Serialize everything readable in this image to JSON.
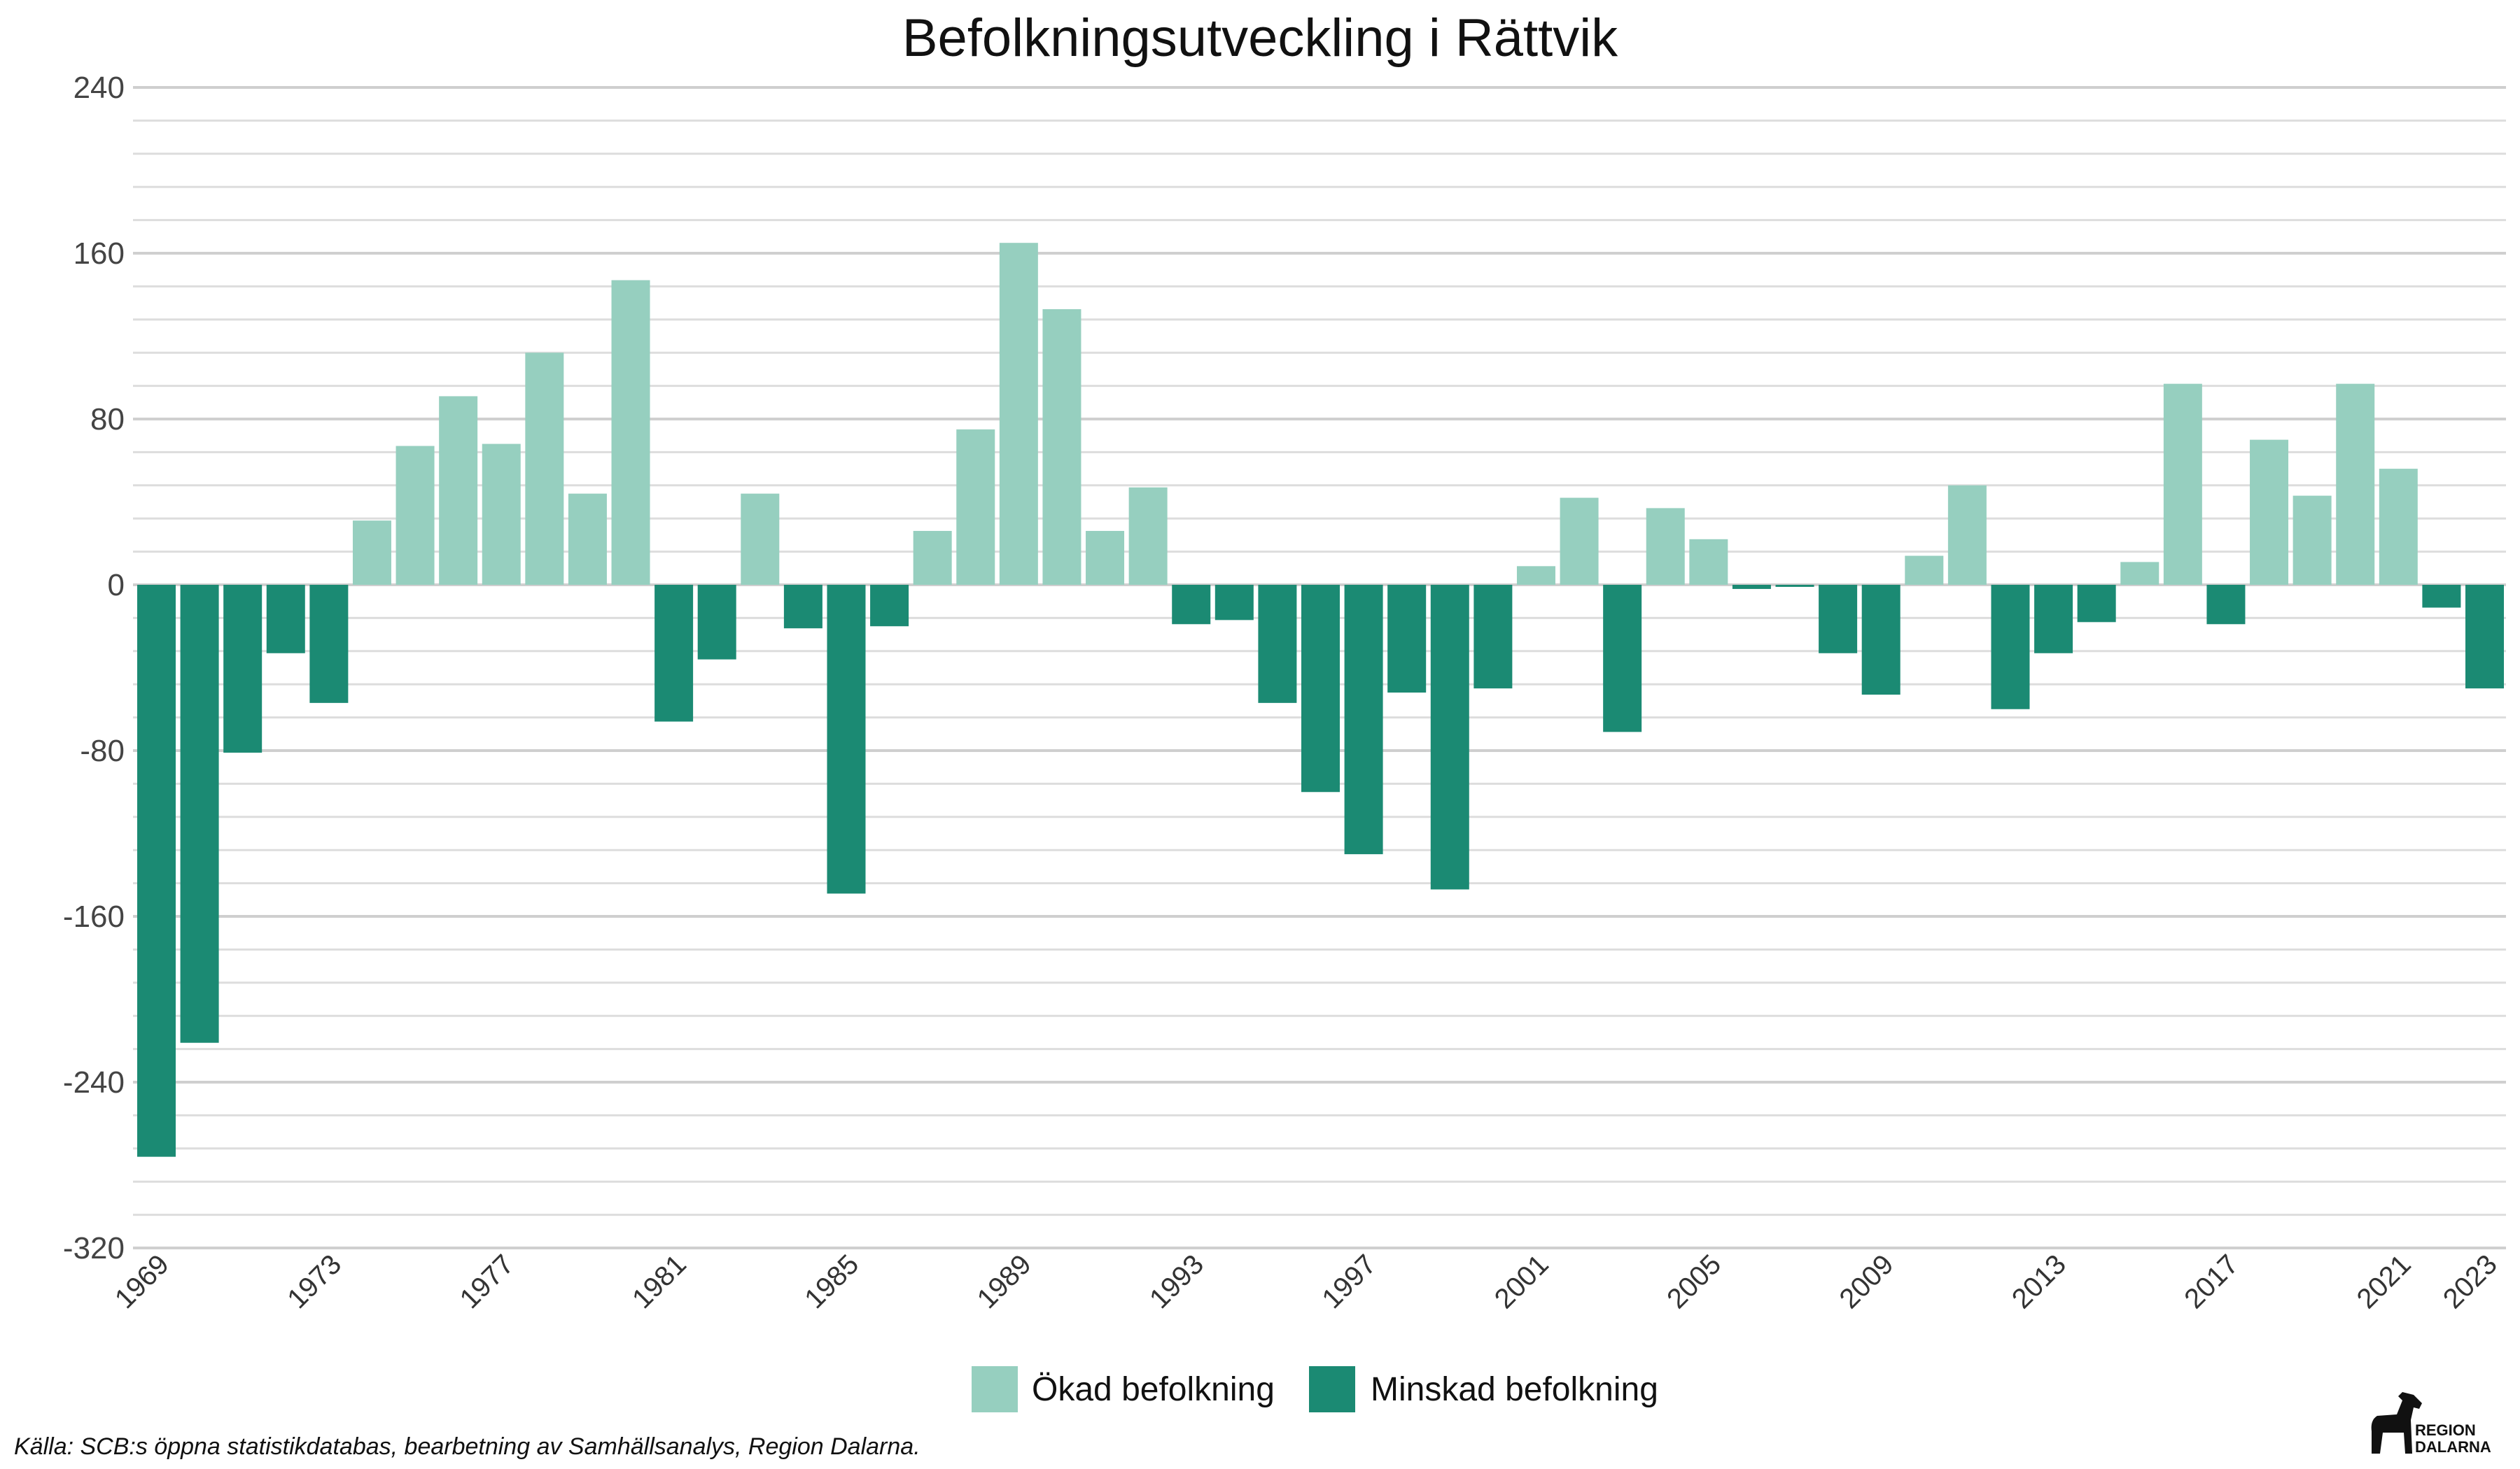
{
  "chart_data": {
    "type": "bar",
    "title": "Befolkningsutveckling i Rättvik",
    "ylim": [
      -320,
      240
    ],
    "y_ticks": [
      "240",
      "160",
      "80",
      "0",
      "-80",
      "-160",
      "-240",
      "-320"
    ],
    "y_tick_values": [
      240,
      160,
      80,
      0,
      -80,
      -160,
      -240,
      -320
    ],
    "x_tick_labels": [
      "1969",
      "1973",
      "1977",
      "1981",
      "1985",
      "1989",
      "1993",
      "1997",
      "2001",
      "2005",
      "2009",
      "2013",
      "2017",
      "2021",
      "2023"
    ],
    "grid": true,
    "legend_position": "bottom",
    "series": [
      {
        "name": "Ökad befolkning",
        "color": "#96cfbf"
      },
      {
        "name": "Minskad befolkning",
        "color": "#1b8a73"
      }
    ],
    "categories": [
      "1969",
      "1970",
      "1971",
      "1972",
      "1973",
      "1974",
      "1975",
      "1976",
      "1977",
      "1978",
      "1979",
      "1980",
      "1981",
      "1982",
      "1983",
      "1984",
      "1985",
      "1986",
      "1987",
      "1988",
      "1989",
      "1990",
      "1991",
      "1992",
      "1993",
      "1994",
      "1995",
      "1996",
      "1997",
      "1998",
      "1999",
      "2000",
      "2001",
      "2002",
      "2003",
      "2004",
      "2005",
      "2006",
      "2007",
      "2008",
      "2009",
      "2010",
      "2011",
      "2012",
      "2013",
      "2014",
      "2015",
      "2016",
      "2017",
      "2018",
      "2019",
      "2020",
      "2021",
      "2022",
      "2023"
    ],
    "values": [
      -276,
      -221,
      -81,
      -33,
      -57,
      31,
      67,
      91,
      68,
      112,
      44,
      147,
      -66,
      -36,
      44,
      -21,
      -149,
      -20,
      26,
      75,
      165,
      133,
      26,
      47,
      -19,
      -17,
      -57,
      -100,
      -130,
      -52,
      -147,
      -50,
      9,
      42,
      -71,
      37,
      22,
      -2,
      -1,
      -33,
      -53,
      14,
      48,
      -60,
      -33,
      -18,
      11,
      97,
      -19,
      70,
      43,
      97,
      56,
      -11,
      -50
    ]
  },
  "legend": {
    "increase_label": "Ökad befolkning",
    "decrease_label": "Minskad befolkning"
  },
  "source": "Källa: SCB:s öppna statistikdatabas, bearbetning av Samhällsanalys, Region Dalarna.",
  "logo": {
    "line1": "REGION",
    "line2": "DALARNA"
  }
}
